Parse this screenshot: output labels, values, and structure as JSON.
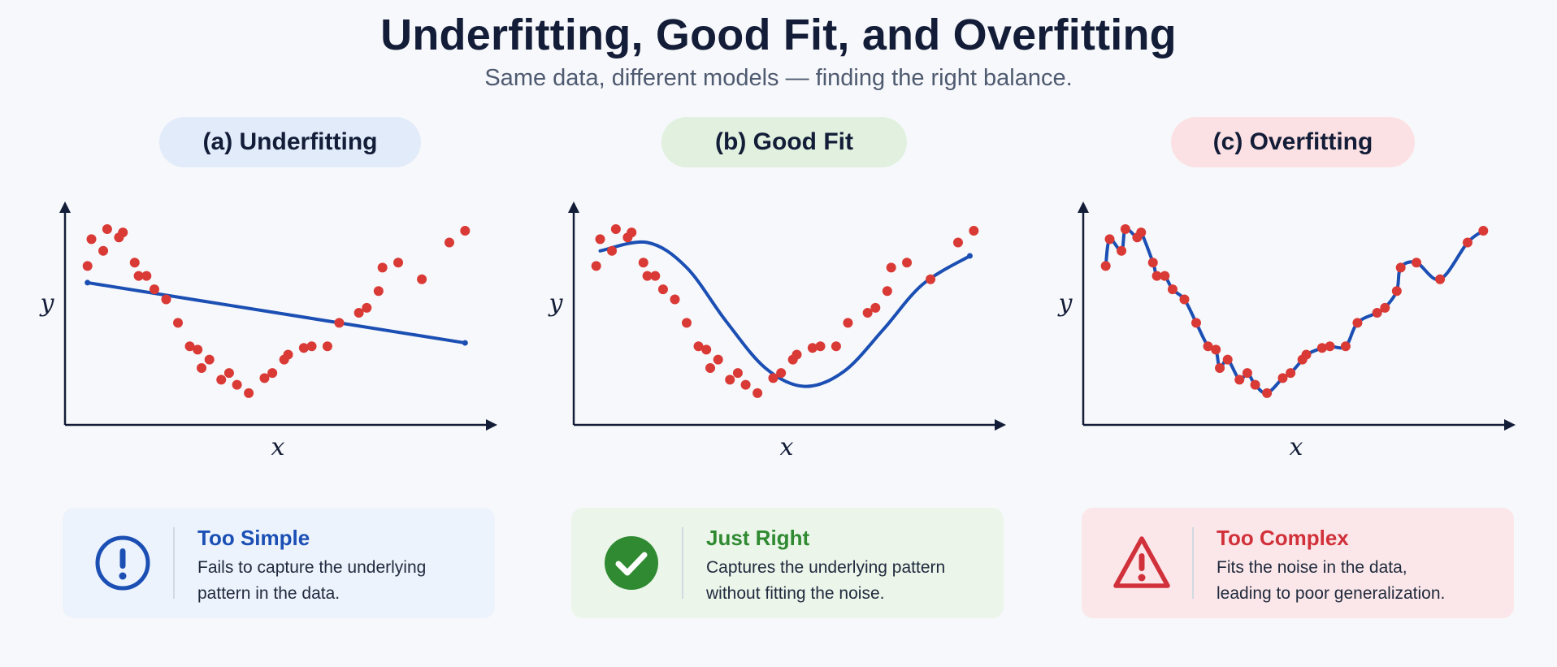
{
  "title": "Underfitting, Good Fit, and Overfitting",
  "subtitle": "Same data, different models — finding the right balance.",
  "colors": {
    "axis": "#131d38",
    "points": "#d93a36",
    "fit_line": "#1b4fb4",
    "pill_a": "#e1ebfa",
    "pill_b": "#e1f0df",
    "pill_c": "#fbe1e3",
    "accent_a": "#1b4fb4",
    "accent_b": "#2f8a31",
    "accent_c": "#d1313a"
  },
  "panels": [
    {
      "label": "(a) Underfitting",
      "x_label": "x",
      "y_label": "y",
      "card_title": "Too Simple",
      "card_line1": "Fails to capture the underlying",
      "card_line2": "pattern in the data.",
      "icon": "exclamation-circle-icon"
    },
    {
      "label": "(b) Good Fit",
      "x_label": "x",
      "y_label": "y",
      "card_title": "Just Right",
      "card_line1": "Captures the underlying pattern",
      "card_line2": "without fitting the noise.",
      "icon": "check-circle-icon"
    },
    {
      "label": "(c) Overfitting",
      "x_label": "x",
      "y_label": "y",
      "card_title": "Too Complex",
      "card_line1": "Fits the noise in the data,",
      "card_line2": "leading to poor generalization.",
      "icon": "warning-triangle-icon"
    }
  ],
  "chart_data": {
    "type": "scatter",
    "points": [
      {
        "x": 0.02,
        "y": 0.78
      },
      {
        "x": 0.03,
        "y": 0.94
      },
      {
        "x": 0.06,
        "y": 0.87
      },
      {
        "x": 0.07,
        "y": 1.0
      },
      {
        "x": 0.1,
        "y": 0.95
      },
      {
        "x": 0.11,
        "y": 0.98
      },
      {
        "x": 0.14,
        "y": 0.8
      },
      {
        "x": 0.15,
        "y": 0.72
      },
      {
        "x": 0.17,
        "y": 0.72
      },
      {
        "x": 0.19,
        "y": 0.64
      },
      {
        "x": 0.22,
        "y": 0.58
      },
      {
        "x": 0.25,
        "y": 0.44
      },
      {
        "x": 0.28,
        "y": 0.3
      },
      {
        "x": 0.3,
        "y": 0.28
      },
      {
        "x": 0.31,
        "y": 0.17
      },
      {
        "x": 0.33,
        "y": 0.22
      },
      {
        "x": 0.36,
        "y": 0.1
      },
      {
        "x": 0.38,
        "y": 0.14
      },
      {
        "x": 0.4,
        "y": 0.07
      },
      {
        "x": 0.43,
        "y": 0.02
      },
      {
        "x": 0.47,
        "y": 0.11
      },
      {
        "x": 0.49,
        "y": 0.14
      },
      {
        "x": 0.52,
        "y": 0.22
      },
      {
        "x": 0.53,
        "y": 0.25
      },
      {
        "x": 0.57,
        "y": 0.29
      },
      {
        "x": 0.59,
        "y": 0.3
      },
      {
        "x": 0.63,
        "y": 0.3
      },
      {
        "x": 0.66,
        "y": 0.44
      },
      {
        "x": 0.71,
        "y": 0.5
      },
      {
        "x": 0.73,
        "y": 0.53
      },
      {
        "x": 0.76,
        "y": 0.63
      },
      {
        "x": 0.77,
        "y": 0.77
      },
      {
        "x": 0.81,
        "y": 0.8
      },
      {
        "x": 0.87,
        "y": 0.7
      },
      {
        "x": 0.94,
        "y": 0.92
      },
      {
        "x": 0.98,
        "y": 0.99
      }
    ],
    "fits": [
      {
        "panel": "(a) Underfitting",
        "model": "linear",
        "x": [
          0.02,
          0.98
        ],
        "y": [
          0.68,
          0.32
        ]
      },
      {
        "panel": "(b) Good Fit",
        "model": "smooth",
        "x": [
          0.03,
          0.15,
          0.25,
          0.35,
          0.45,
          0.55,
          0.65,
          0.75,
          0.85,
          0.97
        ],
        "y": [
          0.87,
          0.92,
          0.77,
          0.45,
          0.17,
          0.06,
          0.15,
          0.4,
          0.67,
          0.84
        ]
      },
      {
        "panel": "(c) Overfitting",
        "model": "interpolating",
        "through_points": true
      }
    ],
    "xlim": [
      0,
      1
    ],
    "ylim": [
      0,
      1
    ],
    "xlabel": "x",
    "ylabel": "y"
  }
}
